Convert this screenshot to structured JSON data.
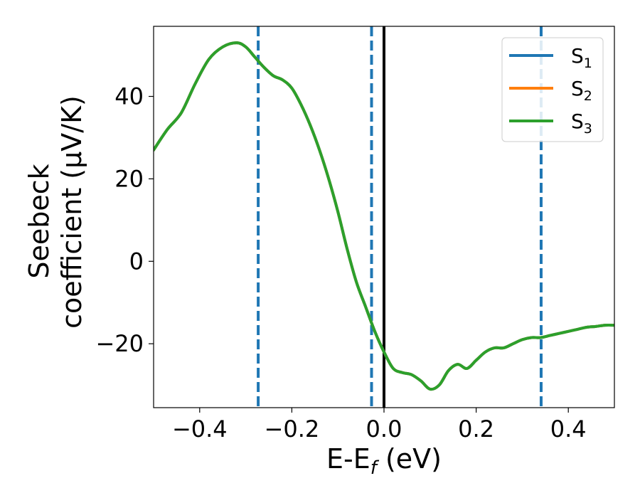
{
  "chart_data": {
    "type": "line",
    "xlabel": "E-E",
    "xlabel_sub": "f",
    "xlabel_unit": " (eV)",
    "ylabel_line1": "Seebeck",
    "ylabel_line2": "coefficient  (μV/K)",
    "xlim": [
      -0.5,
      0.5
    ],
    "ylim": [
      -35.5,
      57
    ],
    "x_ticks": [
      -0.4,
      -0.2,
      0.0,
      0.2,
      0.4
    ],
    "x_tick_labels": [
      "−0.4",
      "−0.2",
      "0.0",
      "0.2",
      "0.4"
    ],
    "y_ticks": [
      -20,
      0,
      20,
      40
    ],
    "y_tick_labels": [
      "−20",
      "0",
      "20",
      "40"
    ],
    "grid": false,
    "legend_position": "top-right",
    "vlines": [
      {
        "x": -0.273,
        "style": "dashed",
        "color": "#1f77b4"
      },
      {
        "x": -0.027,
        "style": "dashed",
        "color": "#1f77b4"
      },
      {
        "x": 0.341,
        "style": "dashed",
        "color": "#1f77b4"
      },
      {
        "x": 0.0,
        "style": "solid",
        "color": "#000000"
      }
    ],
    "x": [
      -0.5,
      -0.47,
      -0.44,
      -0.41,
      -0.38,
      -0.35,
      -0.32,
      -0.3,
      -0.28,
      -0.26,
      -0.24,
      -0.22,
      -0.2,
      -0.18,
      -0.16,
      -0.14,
      -0.12,
      -0.1,
      -0.08,
      -0.06,
      -0.04,
      -0.02,
      0.0,
      0.02,
      0.04,
      0.06,
      0.08,
      0.1,
      0.12,
      0.14,
      0.16,
      0.18,
      0.2,
      0.22,
      0.24,
      0.26,
      0.28,
      0.3,
      0.32,
      0.34,
      0.36,
      0.38,
      0.4,
      0.42,
      0.44,
      0.46,
      0.48,
      0.5
    ],
    "series": [
      {
        "name": "S",
        "sub": "1",
        "color": "#1f77b4",
        "values": [
          27,
          32,
          36,
          43,
          49,
          52,
          53,
          52,
          49.5,
          47,
          45,
          44,
          42,
          38,
          33,
          27,
          20,
          12,
          3,
          -5,
          -11,
          -17,
          -22,
          -26,
          -27,
          -27.5,
          -29,
          -31,
          -30,
          -26.5,
          -25,
          -26,
          -24,
          -22,
          -21,
          -21,
          -20,
          -19,
          -18.5,
          -18.5,
          -18,
          -17.5,
          -17,
          -16.5,
          -16,
          -15.8,
          -15.5,
          -15.5
        ]
      },
      {
        "name": "S",
        "sub": "2",
        "color": "#ff7f0e",
        "values": [
          27,
          32,
          36,
          43,
          49,
          52,
          53,
          52,
          49.5,
          47,
          45,
          44,
          42,
          38,
          33,
          27,
          20,
          12,
          3,
          -5,
          -11,
          -17,
          -22,
          -26,
          -27,
          -27.5,
          -29,
          -31,
          -30,
          -26.5,
          -25,
          -26,
          -24,
          -22,
          -21,
          -21,
          -20,
          -19,
          -18.5,
          -18.5,
          -18,
          -17.5,
          -17,
          -16.5,
          -16,
          -15.8,
          -15.5,
          -15.5
        ]
      },
      {
        "name": "S",
        "sub": "3",
        "color": "#2ca02c",
        "values": [
          27,
          32,
          36,
          43,
          49,
          52,
          53,
          52,
          49.5,
          47,
          45,
          44,
          42,
          38,
          33,
          27,
          20,
          12,
          3,
          -5,
          -11,
          -17,
          -22,
          -26,
          -27,
          -27.5,
          -29,
          -31,
          -30,
          -26.5,
          -25,
          -26,
          -24,
          -22,
          -21,
          -21,
          -20,
          -19,
          -18.5,
          -18.5,
          -18,
          -17.5,
          -17,
          -16.5,
          -16,
          -15.8,
          -15.5,
          -15.5
        ]
      }
    ]
  }
}
